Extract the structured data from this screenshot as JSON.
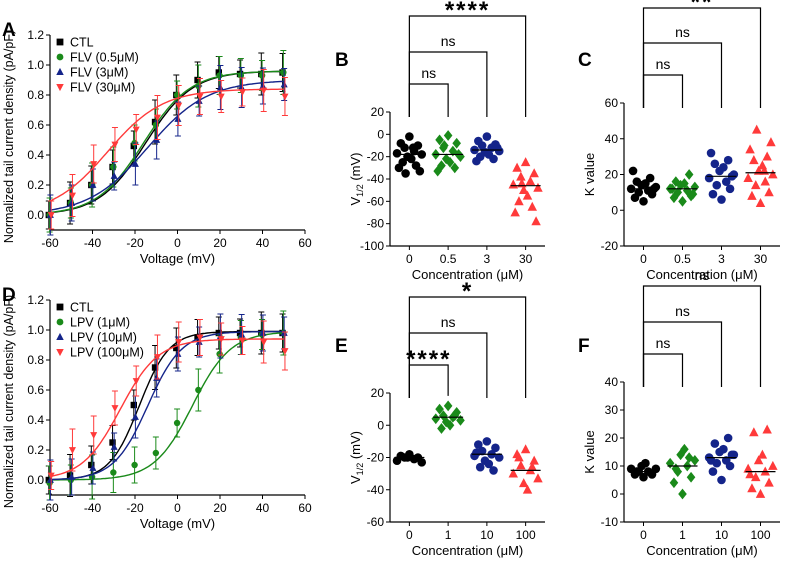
{
  "colors": {
    "ctl": "#000000",
    "green": "#1a8a1a",
    "blue": "#14248a",
    "red": "#ff3a3a"
  },
  "chart_data": [
    {
      "panel": "A",
      "type": "line",
      "xlabel": "Voltage (mV)",
      "ylabel": "Normalized tail current density (pA/pF)",
      "xlim": [
        -60,
        60
      ],
      "ylim": [
        -0.1,
        1.2
      ],
      "xticks": [
        -60,
        -40,
        -20,
        0,
        20,
        40,
        60
      ],
      "yticks": [
        0.0,
        0.2,
        0.4,
        0.6,
        0.8,
        1.0,
        1.2
      ],
      "ytick_labels": [
        "0.0",
        "0.2",
        "0.4",
        "0.6",
        "0.8",
        "1.0",
        "1.2"
      ],
      "x": [
        -60,
        -50,
        -40,
        -30,
        -20,
        -10,
        0,
        10,
        20,
        30,
        40,
        50
      ],
      "series": [
        {
          "name": "CTL",
          "marker": "square",
          "color": "#000000",
          "values": [
            0.0,
            0.08,
            0.2,
            0.32,
            0.46,
            0.62,
            0.8,
            0.9,
            0.95,
            0.94,
            0.94,
            0.95
          ],
          "fit": {
            "vhalf": -15,
            "k": 11,
            "top": 0.96
          }
        },
        {
          "name": "FLV (0.5μM)",
          "marker": "circle",
          "color": "#1a8a1a",
          "values": [
            0.0,
            0.08,
            0.2,
            0.32,
            0.48,
            0.6,
            0.8,
            0.86,
            0.93,
            0.93,
            0.93,
            0.95
          ],
          "fit": {
            "vhalf": -16,
            "k": 11,
            "top": 0.96
          }
        },
        {
          "name": "FLV (3μM)",
          "marker": "triangle",
          "color": "#14248a",
          "values": [
            0.0,
            0.08,
            0.2,
            0.26,
            0.34,
            0.5,
            0.64,
            0.76,
            0.85,
            0.85,
            0.86,
            0.87
          ],
          "fit": {
            "vhalf": -14,
            "k": 14,
            "top": 0.9
          }
        },
        {
          "name": "FLV (30μM)",
          "marker": "tri-down",
          "color": "#ff3a3a",
          "values": [
            0.0,
            0.13,
            0.34,
            0.47,
            0.57,
            0.65,
            0.73,
            0.79,
            0.79,
            0.82,
            0.83,
            0.79
          ],
          "fit": {
            "vhalf": -33,
            "k": 13,
            "top": 0.84
          }
        }
      ]
    },
    {
      "panel": "B",
      "type": "scatter",
      "xlabel": "Concentration (μM)",
      "ylabel_main": "V",
      "ylabel_sub": "1/2",
      "ylabel_unit": " (mV)",
      "ylim": [
        -100,
        20
      ],
      "yticks": [
        20,
        0,
        -20,
        -40,
        -60,
        -80,
        -100
      ],
      "ytick_labels": [
        "20",
        "0",
        "-20",
        "-40",
        "-60",
        "-80",
        "-100"
      ],
      "categories": [
        "0",
        "0.5",
        "3",
        "30"
      ],
      "groups": [
        {
          "marker": "circle",
          "color": "#000000",
          "mean": -18,
          "values": [
            -2,
            -8,
            -10,
            -12,
            -15,
            -17,
            -18,
            -20,
            -22,
            -25,
            -28,
            -30,
            -33,
            -35,
            -12
          ]
        },
        {
          "marker": "diamond",
          "color": "#1a8a1a",
          "mean": -18,
          "values": [
            -1,
            -5,
            -8,
            -12,
            -15,
            -18,
            -20,
            -22,
            -25,
            -28,
            -30,
            -33,
            -18,
            -10
          ]
        },
        {
          "marker": "circle",
          "color": "#14248a",
          "mean": -14,
          "values": [
            -2,
            -6,
            -9,
            -10,
            -12,
            -14,
            -15,
            -16,
            -18,
            -20,
            -22,
            -24,
            -12
          ]
        },
        {
          "marker": "triangle",
          "color": "#ff3a3a",
          "mean": -46,
          "values": [
            -25,
            -30,
            -35,
            -38,
            -42,
            -45,
            -48,
            -50,
            -55,
            -60,
            -65,
            -70,
            -78,
            -44
          ]
        }
      ],
      "comparisons": [
        {
          "to": 1,
          "label": "ns"
        },
        {
          "to": 2,
          "label": "ns"
        },
        {
          "to": 3,
          "label": "****"
        }
      ]
    },
    {
      "panel": "C",
      "type": "scatter",
      "xlabel": "Concentration (μM)",
      "ylabel": "K value",
      "ylim": [
        -20,
        60
      ],
      "yticks": [
        60,
        40,
        20,
        0,
        -20
      ],
      "ytick_labels": [
        "60",
        "40",
        "20",
        "0",
        "-20"
      ],
      "categories": [
        "0",
        "0.5",
        "3",
        "30"
      ],
      "groups": [
        {
          "marker": "circle",
          "color": "#000000",
          "mean": 12,
          "values": [
            5,
            7,
            9,
            10,
            11,
            12,
            13,
            14,
            15,
            16,
            18,
            22,
            12
          ]
        },
        {
          "marker": "diamond",
          "color": "#1a8a1a",
          "mean": 12,
          "values": [
            5,
            7,
            8,
            10,
            11,
            12,
            13,
            14,
            15,
            16,
            20,
            12,
            9
          ]
        },
        {
          "marker": "circle",
          "color": "#14248a",
          "mean": 19,
          "values": [
            6,
            9,
            12,
            14,
            16,
            18,
            20,
            22,
            24,
            26,
            28,
            32,
            19
          ]
        },
        {
          "marker": "triangle",
          "color": "#ff3a3a",
          "mean": 21,
          "values": [
            4,
            8,
            10,
            14,
            16,
            18,
            20,
            22,
            25,
            28,
            30,
            34,
            38,
            45,
            22
          ]
        }
      ],
      "comparisons": [
        {
          "to": 1,
          "label": "ns"
        },
        {
          "to": 2,
          "label": "ns"
        },
        {
          "to": 3,
          "label": "**"
        }
      ]
    },
    {
      "panel": "D",
      "type": "line",
      "xlabel": "Voltage (mV)",
      "ylabel": "Normalized tail current density (pA/pF)",
      "xlim": [
        -60,
        60
      ],
      "ylim": [
        -0.1,
        1.2
      ],
      "xticks": [
        -60,
        -40,
        -20,
        0,
        20,
        40,
        60
      ],
      "yticks": [
        0.0,
        0.2,
        0.4,
        0.6,
        0.8,
        1.0,
        1.2
      ],
      "ytick_labels": [
        "0.0",
        "0.2",
        "0.4",
        "0.6",
        "0.8",
        "1.0",
        "1.2"
      ],
      "x": [
        -60,
        -50,
        -40,
        -30,
        -20,
        -10,
        0,
        10,
        20,
        30,
        40,
        50
      ],
      "series": [
        {
          "name": "CTL",
          "marker": "square",
          "color": "#000000",
          "values": [
            0.0,
            0.03,
            0.1,
            0.25,
            0.5,
            0.75,
            0.88,
            0.95,
            0.98,
            0.98,
            0.98,
            0.98
          ],
          "fit": {
            "vhalf": -18,
            "k": 7,
            "top": 0.99
          }
        },
        {
          "name": "LPV (1μM)",
          "marker": "circle",
          "color": "#1a8a1a",
          "values": [
            -0.02,
            0.0,
            0.02,
            0.05,
            0.1,
            0.18,
            0.38,
            0.6,
            0.84,
            0.95,
            0.97,
            0.98
          ],
          "fit": {
            "vhalf": 7,
            "k": 9,
            "top": 0.99
          }
        },
        {
          "name": "LPV (10μM)",
          "marker": "triangle",
          "color": "#14248a",
          "values": [
            0.0,
            0.02,
            0.08,
            0.22,
            0.42,
            0.68,
            0.84,
            0.92,
            0.96,
            0.97,
            0.98,
            0.98
          ],
          "fit": {
            "vhalf": -14,
            "k": 8,
            "top": 0.99
          }
        },
        {
          "name": "LPV (100μM)",
          "marker": "tri-down",
          "color": "#ff3a3a",
          "values": [
            0.03,
            0.2,
            0.3,
            0.48,
            0.66,
            0.82,
            0.92,
            0.95,
            0.94,
            0.93,
            0.92,
            0.86
          ],
          "fit": {
            "vhalf": -27,
            "k": 9,
            "top": 0.94
          }
        }
      ]
    },
    {
      "panel": "E",
      "type": "scatter",
      "xlabel": "Concentration (μM)",
      "ylabel_main": "V",
      "ylabel_sub": "1/2",
      "ylabel_unit": " (mV)",
      "ylim": [
        -60,
        20
      ],
      "yticks": [
        20,
        0,
        -20,
        -40,
        -60
      ],
      "ytick_labels": [
        "20",
        "0",
        "-20",
        "-40",
        "-60"
      ],
      "categories": [
        "0",
        "1",
        "10",
        "100"
      ],
      "groups": [
        {
          "marker": "circle",
          "color": "#000000",
          "mean": -20,
          "values": [
            -18,
            -19,
            -20,
            -20,
            -21,
            -22,
            -23,
            -20
          ]
        },
        {
          "marker": "diamond",
          "color": "#1a8a1a",
          "mean": 5,
          "values": [
            12,
            10,
            8,
            6,
            5,
            4,
            3,
            2,
            0,
            -2,
            6
          ]
        },
        {
          "marker": "circle",
          "color": "#14248a",
          "mean": -18,
          "values": [
            -10,
            -12,
            -14,
            -16,
            -18,
            -19,
            -20,
            -22,
            -24,
            -26,
            -28,
            -17
          ]
        },
        {
          "marker": "triangle",
          "color": "#ff3a3a",
          "mean": -28,
          "values": [
            -15,
            -18,
            -22,
            -25,
            -28,
            -30,
            -33,
            -36,
            -40,
            -20,
            -26
          ]
        }
      ],
      "comparisons": [
        {
          "to": 1,
          "label": "****"
        },
        {
          "to": 2,
          "label": "ns"
        },
        {
          "to": 3,
          "label": "*"
        }
      ]
    },
    {
      "panel": "F",
      "type": "scatter",
      "xlabel": "Concentration (μM)",
      "ylabel": "K value",
      "ylim": [
        -10,
        40
      ],
      "yticks": [
        40,
        30,
        20,
        10,
        0,
        -10
      ],
      "ytick_labels": [
        "40",
        "30",
        "20",
        "10",
        "0",
        "-10"
      ],
      "categories": [
        "0",
        "1",
        "10",
        "100"
      ],
      "groups": [
        {
          "marker": "circle",
          "color": "#000000",
          "mean": 8,
          "values": [
            6,
            7,
            7,
            8,
            8,
            9,
            9,
            10,
            11,
            8
          ]
        },
        {
          "marker": "diamond",
          "color": "#1a8a1a",
          "mean": 10,
          "values": [
            0,
            4,
            6,
            8,
            10,
            11,
            12,
            14,
            16,
            9,
            13
          ]
        },
        {
          "marker": "circle",
          "color": "#14248a",
          "mean": 13,
          "values": [
            5,
            8,
            10,
            11,
            12,
            13,
            14,
            15,
            16,
            18,
            20,
            12,
            14
          ]
        },
        {
          "marker": "triangle",
          "color": "#ff3a3a",
          "mean": 8,
          "values": [
            0,
            2,
            4,
            6,
            8,
            9,
            10,
            12,
            14,
            22,
            23,
            7
          ]
        }
      ],
      "comparisons": [
        {
          "to": 1,
          "label": "ns"
        },
        {
          "to": 2,
          "label": "ns"
        },
        {
          "to": 3,
          "label": "ns"
        }
      ]
    }
  ]
}
